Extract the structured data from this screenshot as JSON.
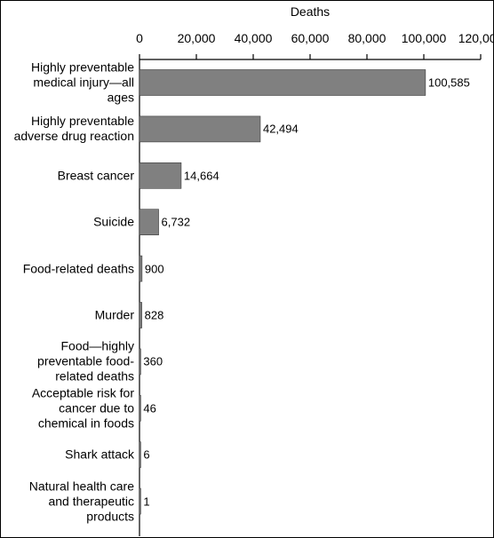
{
  "chart_data": {
    "type": "bar",
    "orientation": "horizontal",
    "title": "",
    "xlabel": "Deaths",
    "ylabel": "",
    "xlim": [
      0,
      120000
    ],
    "x_ticks": [
      0,
      20000,
      40000,
      60000,
      80000,
      100000,
      120000
    ],
    "x_tick_labels": [
      "0",
      "20,000",
      "40,000",
      "60,000",
      "80,000",
      "100,000",
      "120,000"
    ],
    "grid": false,
    "legend": "none",
    "bar_color": "#808080",
    "categories": [
      "Highly preventable medical injury—all ages",
      "Highly preventable adverse drug reaction",
      "Breast cancer",
      "Suicide",
      "Food-related deaths",
      "Murder",
      "Food—highly preventable food-related deaths",
      "Acceptable risk for cancer due to chemical in foods",
      "Shark attack",
      "Natural health care and therapeutic products"
    ],
    "category_lines": [
      [
        "Highly preventable",
        "medical injury—all ages"
      ],
      [
        "Highly preventable",
        "adverse drug reaction"
      ],
      [
        "Breast cancer"
      ],
      [
        "Suicide"
      ],
      [
        "Food-related deaths"
      ],
      [
        "Murder"
      ],
      [
        "Food—highly",
        "preventable food-",
        "related deaths"
      ],
      [
        "Acceptable risk for",
        "cancer due to",
        "chemical in foods"
      ],
      [
        "Shark attack"
      ],
      [
        "Natural health care",
        "and therapeutic",
        "products"
      ]
    ],
    "values": [
      100585,
      42494,
      14664,
      6732,
      900,
      828,
      360,
      46,
      6,
      1
    ],
    "value_labels": [
      "100,585",
      "42,494",
      "14,664",
      "6,732",
      "900",
      "828",
      "360",
      "46",
      "6",
      "1"
    ]
  }
}
